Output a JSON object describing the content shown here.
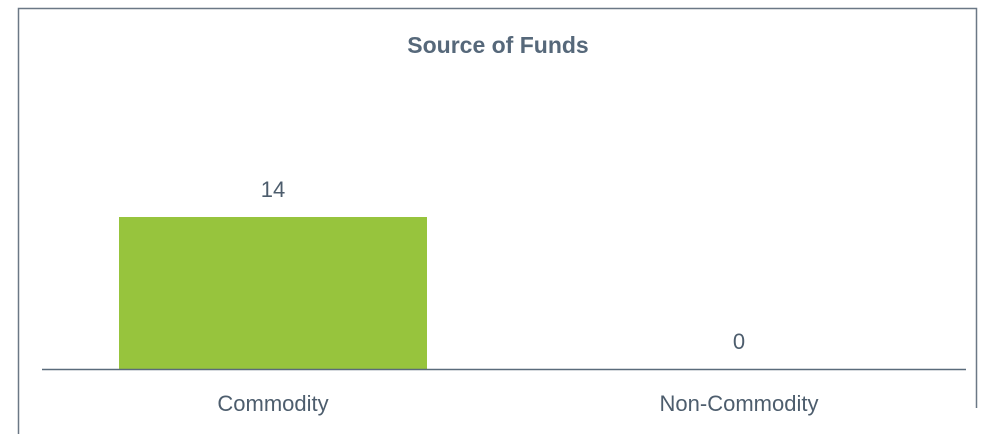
{
  "chart_data": {
    "type": "bar",
    "title": "Source of Funds",
    "categories": [
      "Commodity",
      "Non-Commodity"
    ],
    "values": [
      14,
      0
    ],
    "color": "#97c43d"
  }
}
